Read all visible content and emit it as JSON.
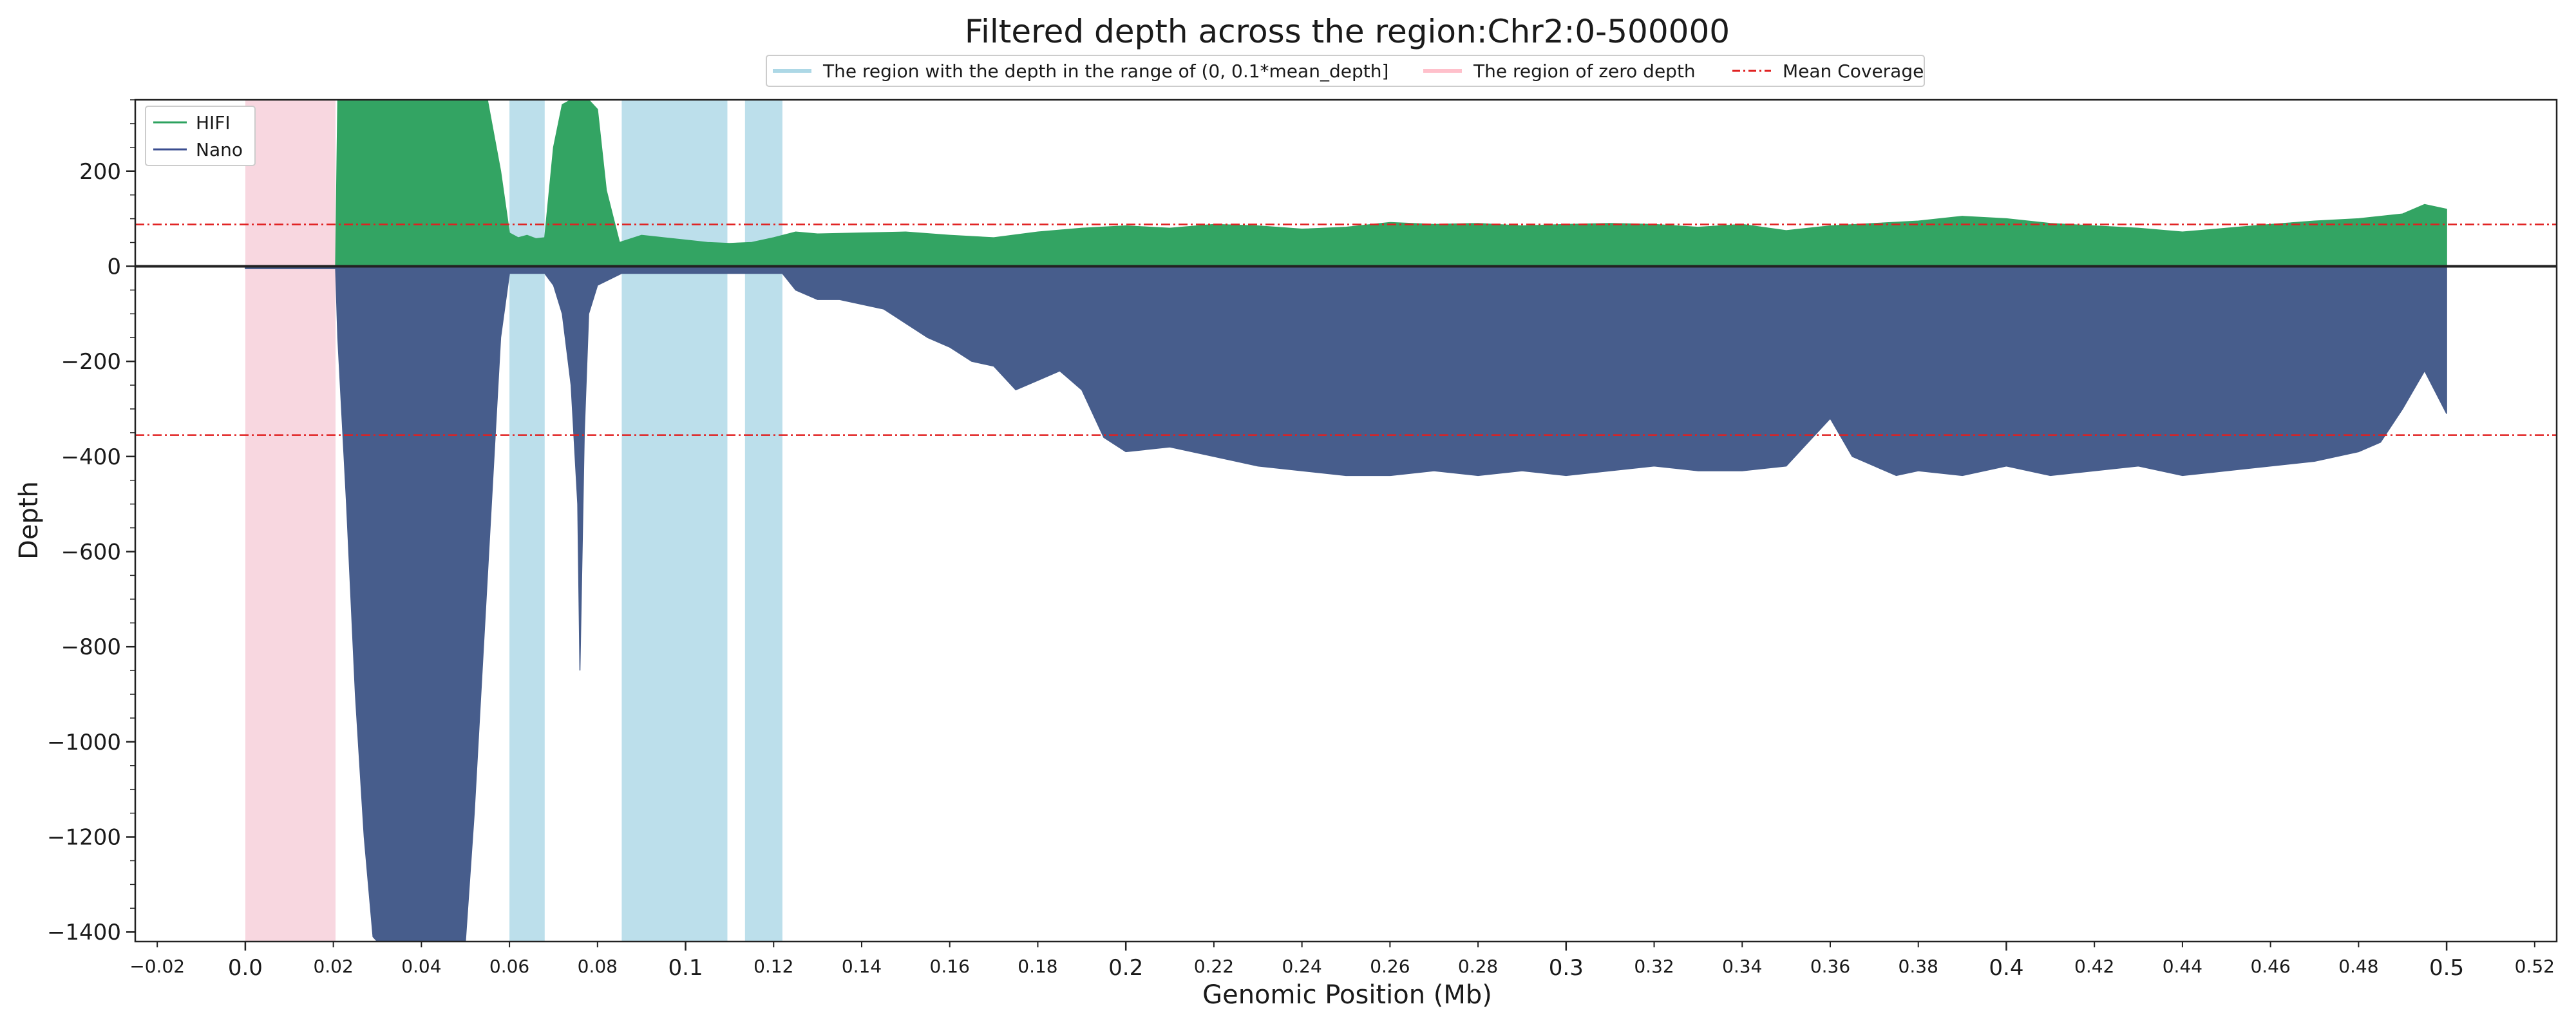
{
  "chart_data": {
    "type": "area",
    "title": "Filtered depth across the region:Chr2:0-500000",
    "xlabel": "Genomic Position (Mb)",
    "ylabel": "Depth",
    "xlim": [
      -0.025,
      0.525
    ],
    "ylim": [
      -1420,
      350
    ],
    "grid": false,
    "x_ticks_major": [
      {
        "value": 0.0,
        "label": "0.0"
      },
      {
        "value": 0.1,
        "label": "0.1"
      },
      {
        "value": 0.2,
        "label": "0.2"
      },
      {
        "value": 0.3,
        "label": "0.3"
      },
      {
        "value": 0.4,
        "label": "0.4"
      },
      {
        "value": 0.5,
        "label": "0.5"
      }
    ],
    "x_ticks_minor": [
      {
        "value": -0.02,
        "label": "−0.02"
      },
      {
        "value": 0.02,
        "label": "0.02"
      },
      {
        "value": 0.04,
        "label": "0.04"
      },
      {
        "value": 0.06,
        "label": "0.06"
      },
      {
        "value": 0.08,
        "label": "0.08"
      },
      {
        "value": 0.12,
        "label": "0.12"
      },
      {
        "value": 0.14,
        "label": "0.14"
      },
      {
        "value": 0.16,
        "label": "0.16"
      },
      {
        "value": 0.18,
        "label": "0.18"
      },
      {
        "value": 0.22,
        "label": "0.22"
      },
      {
        "value": 0.24,
        "label": "0.24"
      },
      {
        "value": 0.26,
        "label": "0.26"
      },
      {
        "value": 0.28,
        "label": "0.28"
      },
      {
        "value": 0.32,
        "label": "0.32"
      },
      {
        "value": 0.34,
        "label": "0.34"
      },
      {
        "value": 0.36,
        "label": "0.36"
      },
      {
        "value": 0.38,
        "label": "0.38"
      },
      {
        "value": 0.42,
        "label": "0.42"
      },
      {
        "value": 0.44,
        "label": "0.44"
      },
      {
        "value": 0.46,
        "label": "0.46"
      },
      {
        "value": 0.48,
        "label": "0.48"
      },
      {
        "value": 0.52,
        "label": "0.52"
      }
    ],
    "y_ticks": [
      {
        "value": 200,
        "label": "200"
      },
      {
        "value": 0,
        "label": "0"
      },
      {
        "value": -200,
        "label": "−200"
      },
      {
        "value": -400,
        "label": "−400"
      },
      {
        "value": -600,
        "label": "−600"
      },
      {
        "value": -800,
        "label": "−800"
      },
      {
        "value": -1000,
        "label": "−1000"
      },
      {
        "value": -1200,
        "label": "−1200"
      },
      {
        "value": -1400,
        "label": "−1400"
      }
    ],
    "legend_top": {
      "placement": "top-center",
      "entries": [
        {
          "label": "The region with the depth in the range of (0, 0.1*mean_depth]",
          "color": "#add8e6",
          "kind": "patch"
        },
        {
          "label": "The region of zero depth",
          "color": "#ffc0cb",
          "kind": "patch"
        },
        {
          "label": "Mean Coverage",
          "color": "#e02020",
          "kind": "dashdot"
        }
      ]
    },
    "legend_inner": {
      "placement": "top-left",
      "entries": [
        {
          "label": "HIFI",
          "color": "#2ca25f"
        },
        {
          "label": "Nano",
          "color": "#3a4d8f"
        }
      ]
    },
    "colors": {
      "hifi_fill": "#33a463",
      "nano_fill": "#475d8c",
      "zero_depth_region": "#f8d7e0",
      "low_depth_region": "#bcdfeb",
      "mean_line": "#e02020",
      "zero_line": "#222222"
    },
    "zero_depth_regions": [
      [
        0.0,
        0.0205
      ]
    ],
    "low_depth_regions": [
      [
        0.06,
        0.068
      ],
      [
        0.0855,
        0.1095
      ],
      [
        0.1135,
        0.122
      ]
    ],
    "mean_coverage": {
      "hifi": 88,
      "nano": -355
    },
    "series": [
      {
        "name": "HIFI",
        "x": [
          0.0,
          0.0205,
          0.021,
          0.025,
          0.03,
          0.035,
          0.04,
          0.045,
          0.05,
          0.055,
          0.058,
          0.06,
          0.062,
          0.064,
          0.066,
          0.068,
          0.07,
          0.072,
          0.074,
          0.076,
          0.078,
          0.08,
          0.082,
          0.085,
          0.09,
          0.095,
          0.1,
          0.105,
          0.11,
          0.115,
          0.12,
          0.125,
          0.13,
          0.14,
          0.15,
          0.16,
          0.17,
          0.18,
          0.19,
          0.2,
          0.21,
          0.22,
          0.23,
          0.24,
          0.25,
          0.26,
          0.27,
          0.28,
          0.29,
          0.3,
          0.31,
          0.32,
          0.33,
          0.34,
          0.35,
          0.36,
          0.37,
          0.38,
          0.39,
          0.4,
          0.41,
          0.42,
          0.43,
          0.44,
          0.45,
          0.46,
          0.47,
          0.48,
          0.49,
          0.495,
          0.5
        ],
        "values": [
          0,
          0,
          350,
          350,
          350,
          350,
          350,
          350,
          350,
          350,
          200,
          70,
          60,
          65,
          58,
          60,
          250,
          340,
          350,
          350,
          350,
          330,
          160,
          50,
          65,
          60,
          55,
          50,
          48,
          50,
          60,
          72,
          68,
          70,
          72,
          65,
          60,
          72,
          80,
          85,
          80,
          88,
          85,
          78,
          82,
          92,
          88,
          90,
          85,
          88,
          90,
          88,
          82,
          88,
          75,
          85,
          90,
          95,
          105,
          100,
          90,
          85,
          80,
          72,
          80,
          88,
          95,
          100,
          110,
          130,
          120
        ]
      },
      {
        "name": "Nano",
        "x": [
          0.0,
          0.0205,
          0.021,
          0.023,
          0.025,
          0.027,
          0.029,
          0.03,
          0.035,
          0.04,
          0.045,
          0.05,
          0.052,
          0.055,
          0.058,
          0.06,
          0.068,
          0.07,
          0.072,
          0.074,
          0.0755,
          0.076,
          0.077,
          0.078,
          0.08,
          0.0855,
          0.1095,
          0.1135,
          0.122,
          0.125,
          0.13,
          0.135,
          0.14,
          0.145,
          0.15,
          0.155,
          0.16,
          0.165,
          0.17,
          0.175,
          0.18,
          0.185,
          0.19,
          0.195,
          0.2,
          0.21,
          0.22,
          0.23,
          0.24,
          0.25,
          0.26,
          0.27,
          0.28,
          0.29,
          0.3,
          0.31,
          0.32,
          0.33,
          0.34,
          0.35,
          0.36,
          0.365,
          0.37,
          0.375,
          0.38,
          0.39,
          0.4,
          0.41,
          0.42,
          0.43,
          0.44,
          0.45,
          0.46,
          0.47,
          0.48,
          0.485,
          0.49,
          0.495,
          0.5
        ],
        "values": [
          -5,
          -5,
          -150,
          -500,
          -900,
          -1200,
          -1410,
          -1420,
          -1420,
          -1420,
          -1420,
          -1420,
          -1150,
          -650,
          -150,
          -15,
          -15,
          -40,
          -100,
          -250,
          -500,
          -850,
          -350,
          -100,
          -40,
          -15,
          -15,
          -15,
          -15,
          -50,
          -70,
          -70,
          -80,
          -90,
          -120,
          -150,
          -170,
          -200,
          -210,
          -260,
          -240,
          -220,
          -260,
          -360,
          -390,
          -380,
          -400,
          -420,
          -430,
          -440,
          -440,
          -430,
          -440,
          -430,
          -440,
          -430,
          -420,
          -430,
          -430,
          -420,
          -320,
          -400,
          -420,
          -440,
          -430,
          -440,
          -420,
          -440,
          -430,
          -420,
          -440,
          -430,
          -420,
          -410,
          -390,
          -370,
          -300,
          -220,
          -310
        ]
      }
    ]
  }
}
